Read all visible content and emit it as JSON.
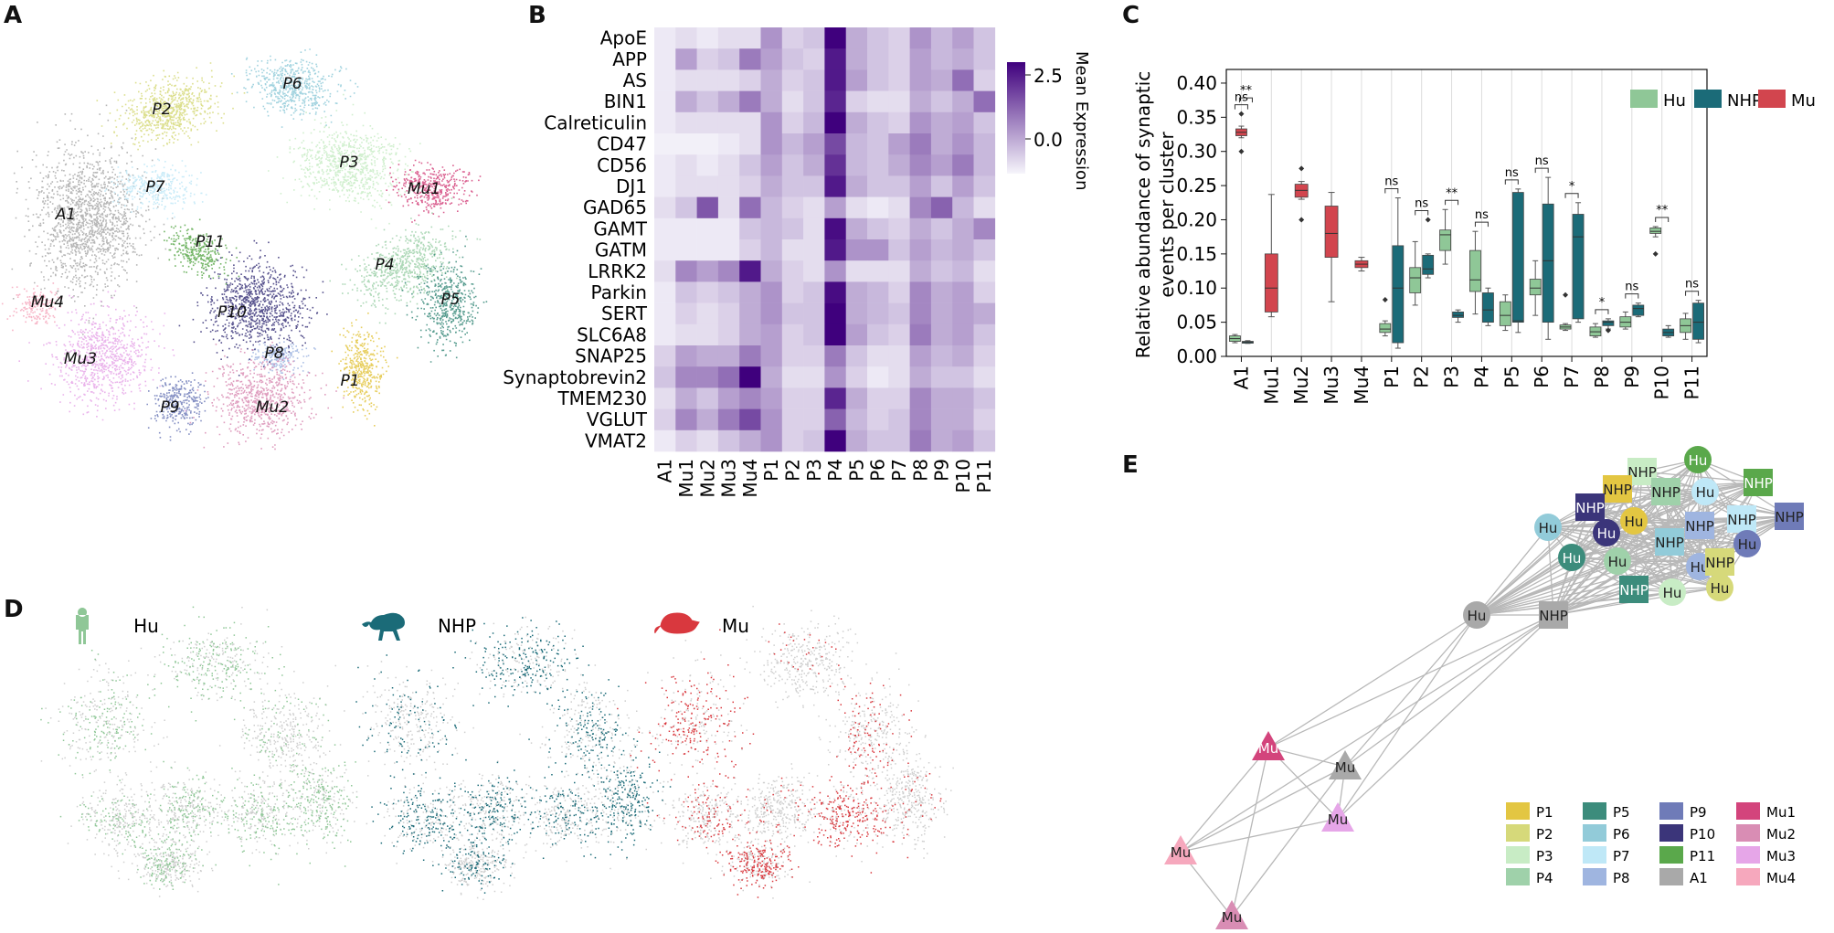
{
  "panel_letters": {
    "a": "A",
    "b": "B",
    "c": "C",
    "d": "D",
    "e": "E"
  },
  "panel_a": {
    "clusters": [
      {
        "label": "A1",
        "color": "#a9a9a9"
      },
      {
        "label": "P1",
        "color": "#e3c642"
      },
      {
        "label": "P2",
        "color": "#d6d97a"
      },
      {
        "label": "P3",
        "color": "#c8ecc5"
      },
      {
        "label": "P4",
        "color": "#9fd1aa"
      },
      {
        "label": "P5",
        "color": "#3c8c7c"
      },
      {
        "label": "P6",
        "color": "#92cbd9"
      },
      {
        "label": "P7",
        "color": "#bfe8f7"
      },
      {
        "label": "P8",
        "color": "#9fb5e0"
      },
      {
        "label": "P9",
        "color": "#6f7bb8"
      },
      {
        "label": "P10",
        "color": "#3b357a"
      },
      {
        "label": "P11",
        "color": "#5aa84b"
      },
      {
        "label": "Mu1",
        "color": "#d3447c"
      },
      {
        "label": "Mu2",
        "color": "#d98db4"
      },
      {
        "label": "Mu3",
        "color": "#e6a6e8"
      },
      {
        "label": "Mu4",
        "color": "#f6a8bd"
      }
    ]
  },
  "panel_b": {
    "genes": [
      "ApoE",
      "APP",
      "AS",
      "BIN1",
      "Calreticulin",
      "CD47",
      "CD56",
      "DJ1",
      "GAD65",
      "GAMT",
      "GATM",
      "LRRK2",
      "Parkin",
      "SERT",
      "SLC6A8",
      "SNAP25",
      "Synaptobrevin2",
      "TMEM230",
      "VGLUT",
      "VMAT2"
    ],
    "clusters": [
      "A1",
      "Mu1",
      "Mu2",
      "Mu3",
      "Mu4",
      "P1",
      "P2",
      "P3",
      "P4",
      "P5",
      "P6",
      "P7",
      "P8",
      "P9",
      "P10",
      "P11"
    ],
    "colorbar_label": "Mean Expression",
    "colorbar_ticks": [
      "2.5",
      "0.0"
    ],
    "colors": {
      "low": "#f6f5fb",
      "high": "#3f007d"
    }
  },
  "chart_data": {
    "type": "box",
    "ylabel": "Relative abundance of synaptic events per cluster",
    "ylim": [
      0,
      0.42
    ],
    "yticks": [
      "0.00",
      "0.05",
      "0.10",
      "0.15",
      "0.20",
      "0.25",
      "0.30",
      "0.35",
      "0.40"
    ],
    "categories": [
      "A1",
      "Mu1",
      "Mu2",
      "Mu3",
      "Mu4",
      "P1",
      "P2",
      "P3",
      "P4",
      "P5",
      "P6",
      "P7",
      "P8",
      "P9",
      "P10",
      "P11"
    ],
    "grid": "vertical",
    "legend": {
      "placement": "top-right",
      "entries": [
        {
          "name": "Hu",
          "color": "#8fc797"
        },
        {
          "name": "NHP",
          "color": "#1b6b78"
        },
        {
          "name": "Mu",
          "color": "#d2454e"
        }
      ]
    },
    "boxes": [
      {
        "category": "A1",
        "series": "Hu",
        "q1": 0.022,
        "median": 0.026,
        "q3": 0.03,
        "whislo": 0.02,
        "whishi": 0.032
      },
      {
        "category": "A1",
        "series": "NHP",
        "q1": 0.02,
        "median": 0.021,
        "q3": 0.022,
        "whislo": 0.019,
        "whishi": 0.023
      },
      {
        "category": "A1",
        "series": "Mu",
        "q1": 0.323,
        "median": 0.328,
        "q3": 0.333,
        "whislo": 0.32,
        "whishi": 0.337,
        "fliers": [
          0.355,
          0.3
        ]
      },
      {
        "category": "Mu1",
        "series": "Mu",
        "q1": 0.065,
        "median": 0.1,
        "q3": 0.15,
        "whislo": 0.058,
        "whishi": 0.237
      },
      {
        "category": "Mu2",
        "series": "Mu",
        "q1": 0.233,
        "median": 0.243,
        "q3": 0.252,
        "whislo": 0.23,
        "whishi": 0.256,
        "fliers": [
          0.275,
          0.2
        ]
      },
      {
        "category": "Mu3",
        "series": "Mu",
        "q1": 0.145,
        "median": 0.18,
        "q3": 0.22,
        "whislo": 0.08,
        "whishi": 0.24
      },
      {
        "category": "Mu4",
        "series": "Mu",
        "q1": 0.13,
        "median": 0.135,
        "q3": 0.14,
        "whislo": 0.125,
        "whishi": 0.145
      },
      {
        "category": "P1",
        "series": "Hu",
        "q1": 0.035,
        "median": 0.04,
        "q3": 0.048,
        "whislo": 0.03,
        "whishi": 0.052,
        "fliers": [
          0.083
        ]
      },
      {
        "category": "P1",
        "series": "NHP",
        "q1": 0.02,
        "median": 0.1,
        "q3": 0.162,
        "whislo": 0.012,
        "whishi": 0.232
      },
      {
        "category": "P2",
        "series": "Hu",
        "q1": 0.093,
        "median": 0.115,
        "q3": 0.13,
        "whislo": 0.075,
        "whishi": 0.168
      },
      {
        "category": "P2",
        "series": "NHP",
        "q1": 0.12,
        "median": 0.128,
        "q3": 0.148,
        "whislo": 0.115,
        "whishi": 0.15,
        "fliers": [
          0.2
        ]
      },
      {
        "category": "P3",
        "series": "Hu",
        "q1": 0.155,
        "median": 0.178,
        "q3": 0.185,
        "whislo": 0.135,
        "whishi": 0.215
      },
      {
        "category": "P3",
        "series": "NHP",
        "q1": 0.057,
        "median": 0.06,
        "q3": 0.065,
        "whislo": 0.05,
        "whishi": 0.068
      },
      {
        "category": "P4",
        "series": "Hu",
        "q1": 0.095,
        "median": 0.112,
        "q3": 0.155,
        "whislo": 0.062,
        "whishi": 0.183
      },
      {
        "category": "P4",
        "series": "NHP",
        "q1": 0.05,
        "median": 0.068,
        "q3": 0.093,
        "whislo": 0.045,
        "whishi": 0.1
      },
      {
        "category": "P5",
        "series": "Hu",
        "q1": 0.045,
        "median": 0.06,
        "q3": 0.08,
        "whislo": 0.038,
        "whishi": 0.09
      },
      {
        "category": "P5",
        "series": "NHP",
        "q1": 0.05,
        "median": 0.052,
        "q3": 0.24,
        "whislo": 0.035,
        "whishi": 0.245
      },
      {
        "category": "P6",
        "series": "Hu",
        "q1": 0.09,
        "median": 0.1,
        "q3": 0.113,
        "whislo": 0.06,
        "whishi": 0.14
      },
      {
        "category": "P6",
        "series": "NHP",
        "q1": 0.05,
        "median": 0.14,
        "q3": 0.223,
        "whislo": 0.025,
        "whishi": 0.262
      },
      {
        "category": "P7",
        "series": "Hu",
        "q1": 0.04,
        "median": 0.043,
        "q3": 0.046,
        "whislo": 0.038,
        "whishi": 0.048,
        "fliers": [
          0.09
        ]
      },
      {
        "category": "P7",
        "series": "NHP",
        "q1": 0.055,
        "median": 0.175,
        "q3": 0.208,
        "whislo": 0.05,
        "whishi": 0.225
      },
      {
        "category": "P8",
        "series": "Hu",
        "q1": 0.03,
        "median": 0.036,
        "q3": 0.043,
        "whislo": 0.028,
        "whishi": 0.048
      },
      {
        "category": "P8",
        "series": "NHP",
        "q1": 0.045,
        "median": 0.05,
        "q3": 0.052,
        "whislo": 0.04,
        "whishi": 0.055,
        "fliers": [
          0.038
        ]
      },
      {
        "category": "P9",
        "series": "Hu",
        "q1": 0.043,
        "median": 0.05,
        "q3": 0.058,
        "whislo": 0.04,
        "whishi": 0.065
      },
      {
        "category": "P9",
        "series": "NHP",
        "q1": 0.06,
        "median": 0.07,
        "q3": 0.075,
        "whislo": 0.058,
        "whishi": 0.078
      },
      {
        "category": "P10",
        "series": "Hu",
        "q1": 0.18,
        "median": 0.183,
        "q3": 0.188,
        "whislo": 0.175,
        "whishi": 0.19,
        "fliers": [
          0.15
        ]
      },
      {
        "category": "P10",
        "series": "NHP",
        "q1": 0.03,
        "median": 0.035,
        "q3": 0.04,
        "whislo": 0.028,
        "whishi": 0.045
      },
      {
        "category": "P11",
        "series": "Hu",
        "q1": 0.035,
        "median": 0.045,
        "q3": 0.055,
        "whislo": 0.025,
        "whishi": 0.063
      },
      {
        "category": "P11",
        "series": "NHP",
        "q1": 0.025,
        "median": 0.05,
        "q3": 0.078,
        "whislo": 0.02,
        "whishi": 0.082
      }
    ],
    "significance": [
      {
        "category": "A1",
        "pair": "Hu-NHP",
        "label": "ns"
      },
      {
        "category": "A1",
        "pair": "NHP-Mu",
        "label": "**"
      },
      {
        "category": "P1",
        "label": "ns"
      },
      {
        "category": "P2",
        "label": "ns"
      },
      {
        "category": "P3",
        "label": "**"
      },
      {
        "category": "P4",
        "label": "ns"
      },
      {
        "category": "P5",
        "label": "ns"
      },
      {
        "category": "P6",
        "label": "ns"
      },
      {
        "category": "P7",
        "label": "*"
      },
      {
        "category": "P8",
        "label": "*"
      },
      {
        "category": "P9",
        "label": "ns"
      },
      {
        "category": "P10",
        "label": "**"
      },
      {
        "category": "P11",
        "label": "ns"
      }
    ]
  },
  "panel_d": {
    "species": [
      {
        "label": "Hu",
        "color": "#8fc797",
        "icon": "human-icon"
      },
      {
        "label": "NHP",
        "color": "#1b6b78",
        "icon": "monkey-icon"
      },
      {
        "label": "Mu",
        "color": "#d9383e",
        "icon": "mouse-icon"
      }
    ]
  },
  "panel_e": {
    "node_labels": {
      "hu": "Hu",
      "nhp": "NHP",
      "mu": "Mu"
    },
    "legend": [
      {
        "label": "P1",
        "color": "#e3c642"
      },
      {
        "label": "P5",
        "color": "#3c8c7c"
      },
      {
        "label": "P9",
        "color": "#6f7bb8"
      },
      {
        "label": "Mu1",
        "color": "#d3447c"
      },
      {
        "label": "P2",
        "color": "#d6d97a"
      },
      {
        "label": "P6",
        "color": "#92cbd9"
      },
      {
        "label": "P10",
        "color": "#3b357a"
      },
      {
        "label": "Mu2",
        "color": "#d98db4"
      },
      {
        "label": "P3",
        "color": "#c8ecc5"
      },
      {
        "label": "P7",
        "color": "#bfe8f7"
      },
      {
        "label": "P11",
        "color": "#5aa84b"
      },
      {
        "label": "Mu3",
        "color": "#e6a6e8"
      },
      {
        "label": "P4",
        "color": "#9fd1aa"
      },
      {
        "label": "P8",
        "color": "#9fb5e0"
      },
      {
        "label": "A1",
        "color": "#a9a9a9"
      },
      {
        "label": "Mu4",
        "color": "#f6a8bd"
      }
    ]
  }
}
